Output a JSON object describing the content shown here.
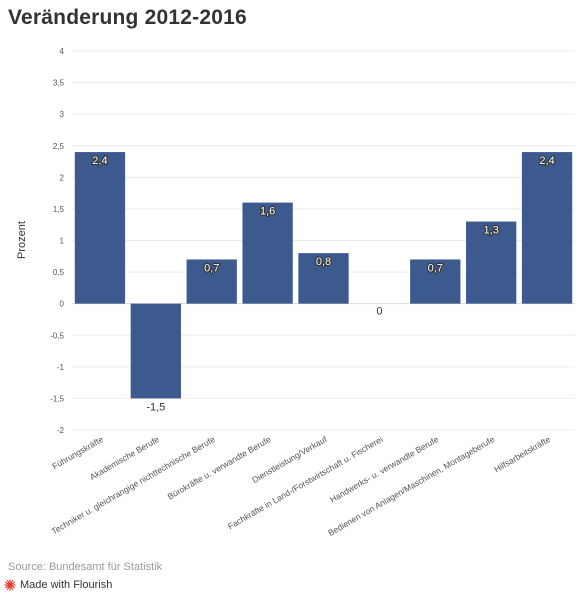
{
  "chart_data": {
    "type": "bar",
    "title": "Veränderung 2012-2016",
    "ylabel": "Prozent",
    "xlabel": "",
    "ylim": [
      -2,
      4
    ],
    "yticks": [
      "4",
      "3,5",
      "3",
      "2,5",
      "2",
      "1,5",
      "1",
      "0,5",
      "0",
      "-0,5",
      "-1",
      "-1,5",
      "-2"
    ],
    "ytick_values": [
      4,
      3.5,
      3,
      2.5,
      2,
      1.5,
      1,
      0.5,
      0,
      -0.5,
      -1,
      -1.5,
      -2
    ],
    "categories": [
      "Führungskräfte",
      "Akademische Berufe",
      "Techniker u. gleichrangige nichttechnische Berufe",
      "Bürokräfte u. verwandte Berufe",
      "Dienstleistung/Verkauf",
      "Fachkräfte in Land-/Forstwirtschaft u. Fischerei",
      "Handwerks- u. verwandte Berufe",
      "Bedienen von Anlagen/Maschinen, Montageberufe",
      "Hilfsarbeitskräfte"
    ],
    "values": [
      2.4,
      -1.5,
      0.7,
      1.6,
      0.8,
      0,
      0.7,
      1.3,
      2.4
    ],
    "value_labels": [
      "2,4",
      "-1,5",
      "0,7",
      "1,6",
      "0,8",
      "0",
      "0,7",
      "1,3",
      "2,4"
    ],
    "bar_color": "#3d5a8f",
    "grid": true
  },
  "footer": {
    "source": "Source: Bundesamt für Statistik",
    "made_with": "Made with Flourish",
    "flourish_color": "#e8372a"
  }
}
